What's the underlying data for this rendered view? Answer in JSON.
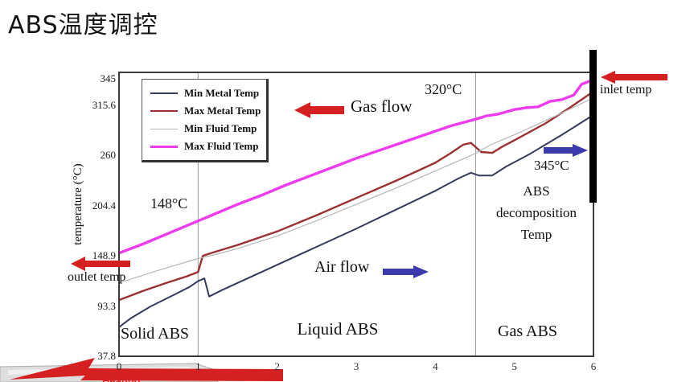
{
  "title": "ABS温度调控",
  "colors": {
    "arrow_red": "#d42020",
    "arrow_blue": "#3b3bad",
    "black_bar": "#000000",
    "grid_line": "#9a9a9a",
    "plot_border": "#3a3a3a",
    "slab_gray": "#dedede"
  },
  "annotations": {
    "temp_148": "148°C",
    "temp_320": "320°C",
    "temp_345": "345°C",
    "gas_flow": "Gas flow",
    "air_flow": "Air flow",
    "abs_decomp_line1": "ABS",
    "abs_decomp_line2": "decomposition",
    "abs_decomp_line3": "Temp",
    "inlet_temp": "inlet temp",
    "outlet_temp": "outlet temp",
    "bottom_cut_text": "Heating"
  },
  "chart_data": {
    "type": "line",
    "title": "",
    "xlabel": "",
    "ylabel": "temperature (°C)",
    "xlim": [
      0,
      6
    ],
    "ylim": [
      37.8,
      345
    ],
    "x_ticks": [
      0,
      1,
      2,
      3,
      4,
      5,
      6
    ],
    "y_ticks": [
      345,
      315.6,
      260,
      204.4,
      148.9,
      93.3,
      37.8
    ],
    "grid": "region-boundaries-only",
    "region_boundaries_x": [
      1,
      4.51
    ],
    "regions": [
      "Solid ABS",
      "Liquid ABS",
      "Gas ABS"
    ],
    "legend_position": "top-left",
    "series": [
      {
        "name": "Min Metal Temp",
        "color": "#333a5c",
        "width": 2,
        "points": [
          [
            0,
            70
          ],
          [
            0.15,
            80
          ],
          [
            0.4,
            93
          ],
          [
            0.7,
            106
          ],
          [
            0.9,
            115
          ],
          [
            1.0,
            121
          ],
          [
            1.08,
            124
          ],
          [
            1.14,
            104
          ],
          [
            1.3,
            111
          ],
          [
            1.6,
            123
          ],
          [
            2,
            139
          ],
          [
            2.5,
            159
          ],
          [
            3,
            179
          ],
          [
            3.5,
            200
          ],
          [
            4,
            221
          ],
          [
            4.3,
            235
          ],
          [
            4.45,
            241
          ],
          [
            4.55,
            238
          ],
          [
            4.72,
            238
          ],
          [
            4.9,
            248
          ],
          [
            5.2,
            262
          ],
          [
            5.6,
            283
          ],
          [
            6,
            305
          ]
        ]
      },
      {
        "name": "Max Metal Temp",
        "color": "#9c3030",
        "width": 2.4,
        "points": [
          [
            0,
            100
          ],
          [
            0.3,
            110
          ],
          [
            0.6,
            119
          ],
          [
            0.85,
            126
          ],
          [
            1.0,
            131
          ],
          [
            1.06,
            149
          ],
          [
            1.2,
            153
          ],
          [
            1.5,
            161
          ],
          [
            2,
            176
          ],
          [
            2.5,
            194
          ],
          [
            3,
            213
          ],
          [
            3.5,
            232
          ],
          [
            4,
            252
          ],
          [
            4.2,
            263
          ],
          [
            4.35,
            272
          ],
          [
            4.45,
            274
          ],
          [
            4.58,
            264
          ],
          [
            4.72,
            263
          ],
          [
            4.85,
            270
          ],
          [
            5,
            277
          ],
          [
            5.4,
            296
          ],
          [
            5.7,
            313
          ],
          [
            6,
            331
          ]
        ]
      },
      {
        "name": "Min Fluid Temp",
        "color": "#b5b5b5",
        "width": 1.2,
        "points": [
          [
            0,
            119
          ],
          [
            0.5,
            133
          ],
          [
            1,
            146
          ],
          [
            1.2,
            150
          ],
          [
            1.5,
            157
          ],
          [
            2,
            171
          ],
          [
            2.5,
            188
          ],
          [
            3,
            206
          ],
          [
            3.5,
            224
          ],
          [
            4,
            243
          ],
          [
            4.5,
            262
          ],
          [
            4.7,
            272
          ],
          [
            5,
            283
          ],
          [
            5.5,
            303
          ],
          [
            6,
            324
          ]
        ]
      },
      {
        "name": "Max Fluid Temp",
        "color": "#ee3bee",
        "width": 3.4,
        "points": [
          [
            0,
            152
          ],
          [
            0.3,
            162
          ],
          [
            0.6,
            173
          ],
          [
            0.9,
            184
          ],
          [
            1.2,
            195
          ],
          [
            1.5,
            206
          ],
          [
            1.8,
            216
          ],
          [
            2.1,
            227
          ],
          [
            2.4,
            237
          ],
          [
            2.7,
            247
          ],
          [
            3,
            257
          ],
          [
            3.3,
            266
          ],
          [
            3.6,
            275
          ],
          [
            3.9,
            284
          ],
          [
            4.2,
            293
          ],
          [
            4.5,
            300
          ],
          [
            4.65,
            304
          ],
          [
            4.8,
            306
          ],
          [
            5,
            311
          ],
          [
            5.15,
            313
          ],
          [
            5.3,
            314
          ],
          [
            5.45,
            320
          ],
          [
            5.6,
            322
          ],
          [
            5.75,
            327
          ],
          [
            5.85,
            339
          ],
          [
            6,
            344
          ]
        ]
      }
    ]
  }
}
